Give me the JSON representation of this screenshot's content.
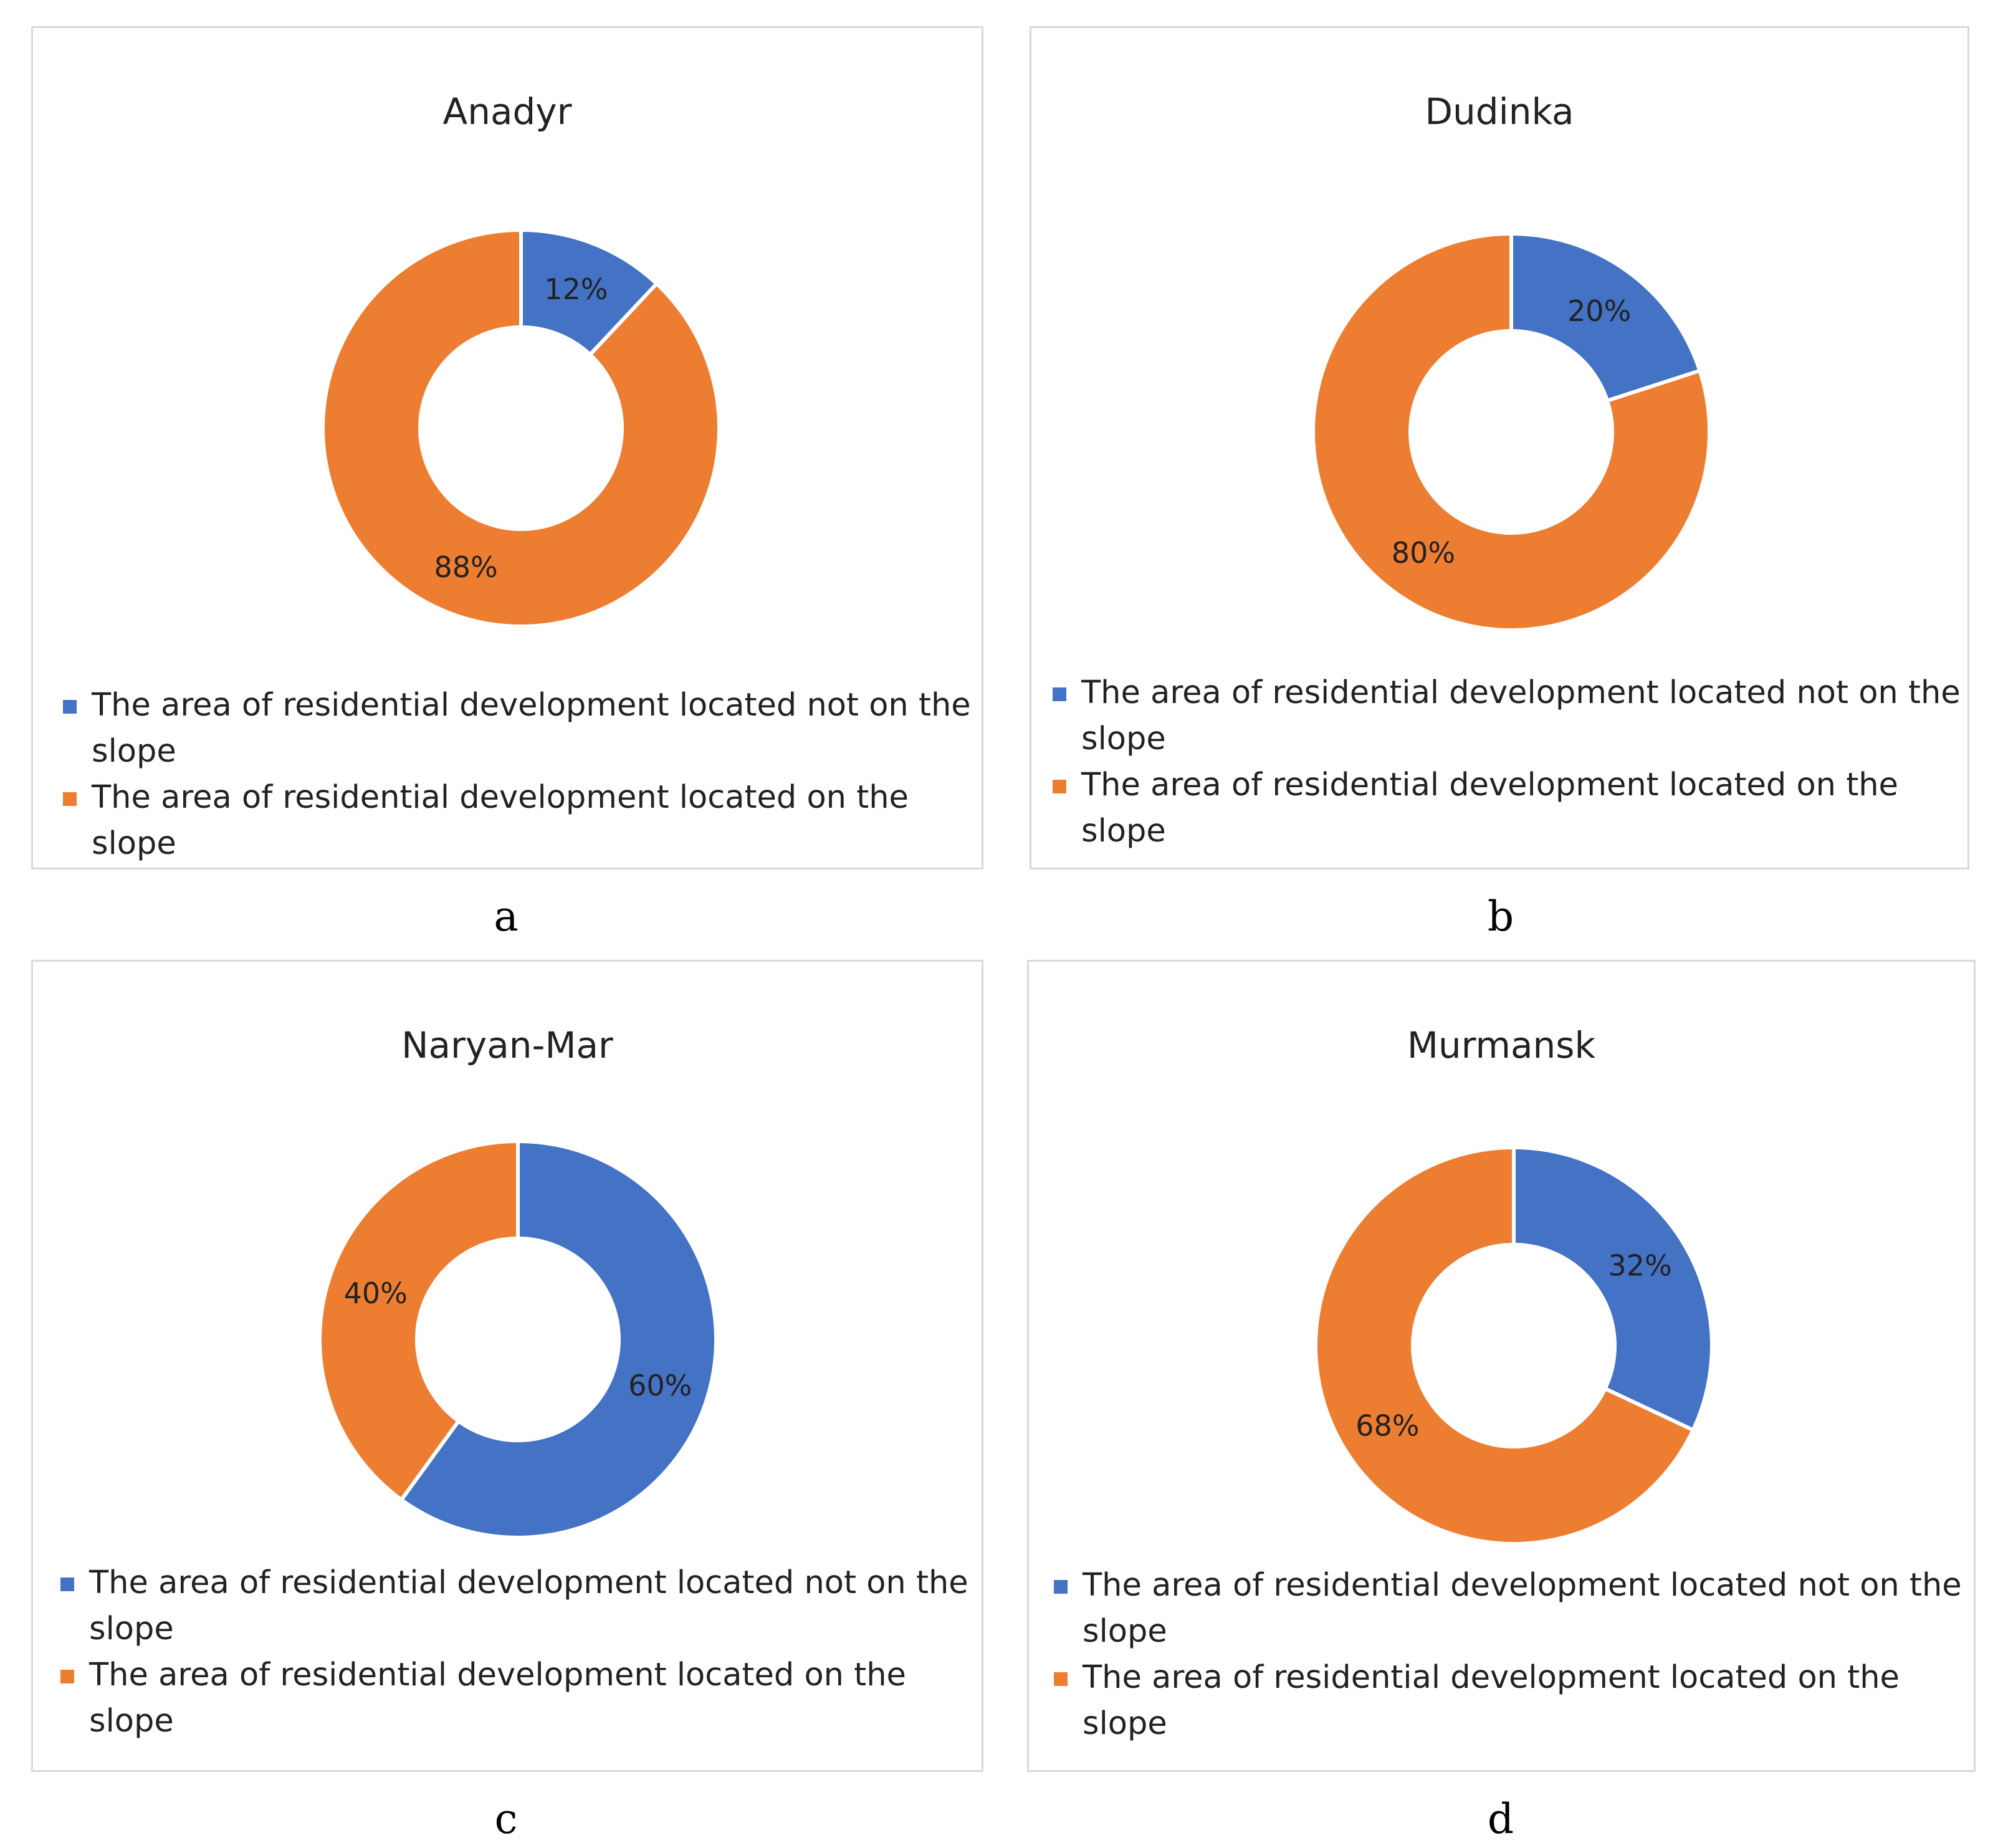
{
  "legend": {
    "not_on_slope": "The area of residential development located not on the slope",
    "on_slope": "The area of residential development located on the slope"
  },
  "colors": {
    "not_on_slope": "#4472c4",
    "on_slope": "#ed7d31",
    "label_text": "#222222"
  },
  "chart_data": [
    {
      "type": "pie",
      "variant": "donut",
      "title": "Anadyr",
      "panel_label": "a",
      "categories": [
        "The area of residential development located not on the slope",
        "The area of residential development located on the slope"
      ],
      "values": [
        12,
        88
      ],
      "data_labels": [
        "12%",
        "88%"
      ],
      "legend_position": "bottom"
    },
    {
      "type": "pie",
      "variant": "donut",
      "title": "Dudinka",
      "panel_label": "b",
      "categories": [
        "The area of residential development located not on the slope",
        "The area of residential development located on the slope"
      ],
      "values": [
        20,
        80
      ],
      "data_labels": [
        "20%",
        "80%"
      ],
      "legend_position": "bottom"
    },
    {
      "type": "pie",
      "variant": "donut",
      "title": "Naryan-Mar",
      "panel_label": "c",
      "categories": [
        "The area of residential development located not on the slope",
        "The area of residential development located on the slope"
      ],
      "values": [
        60,
        40
      ],
      "data_labels": [
        "60%",
        "40%"
      ],
      "legend_position": "bottom"
    },
    {
      "type": "pie",
      "variant": "donut",
      "title": "Murmansk",
      "panel_label": "d",
      "categories": [
        "The area of residential development located not on the slope",
        "The area of residential development located on the slope"
      ],
      "values": [
        32,
        68
      ],
      "data_labels": [
        "32%",
        "68%"
      ],
      "legend_position": "bottom"
    }
  ]
}
